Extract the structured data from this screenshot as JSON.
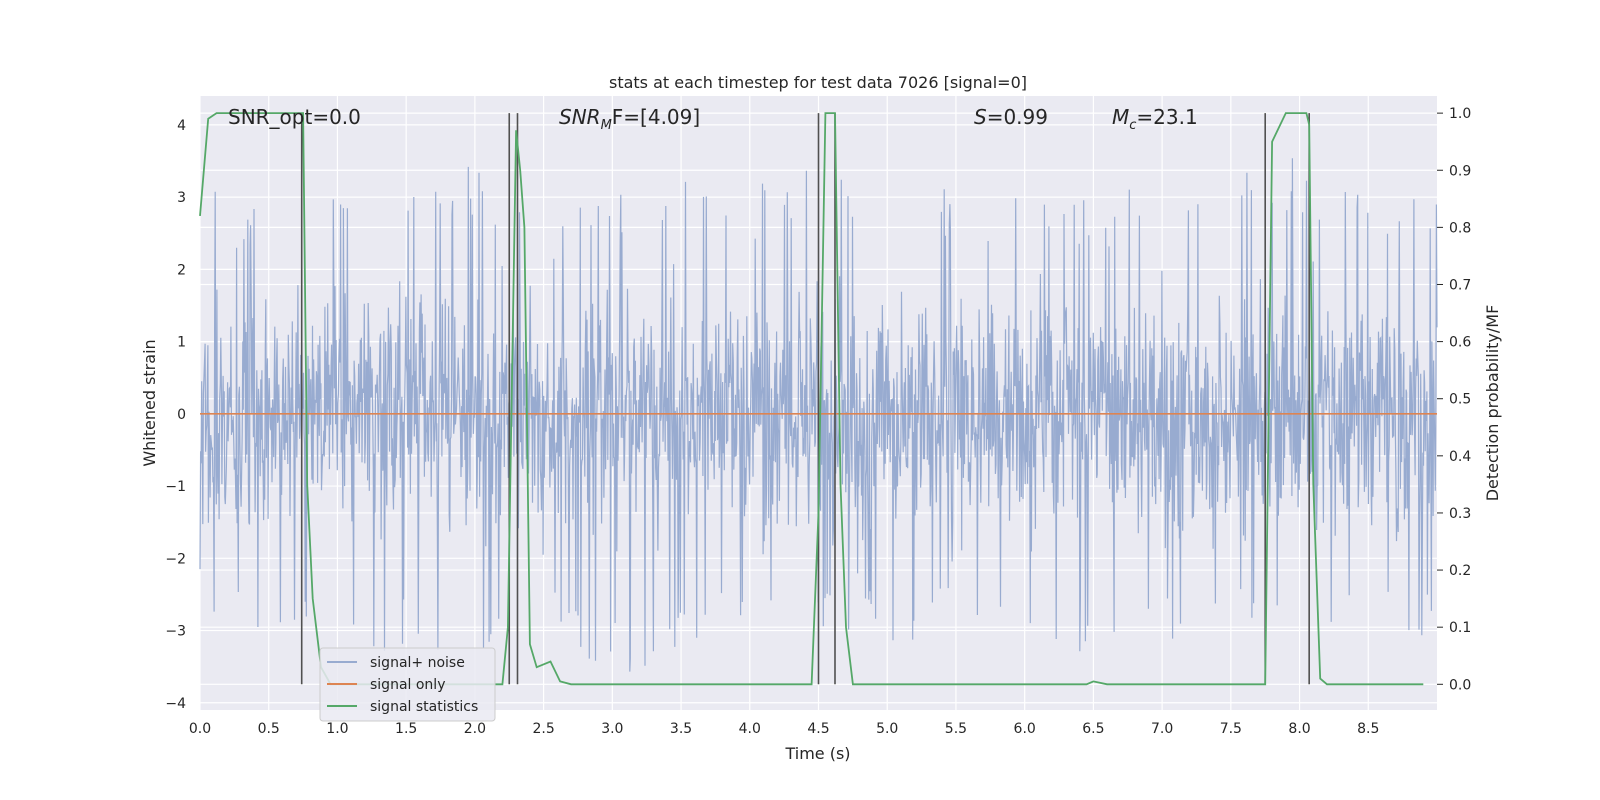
{
  "chart_data": {
    "type": "line",
    "title": "stats at each timestep for test data 7026 [signal=0]",
    "xlabel": "Time (s)",
    "ylabel": "Whitened strain",
    "y2label": "Detection probability/MF",
    "xlim": [
      0.0,
      9.0
    ],
    "ylim": [
      -4.1,
      4.4
    ],
    "y2lim": [
      -0.045,
      1.03
    ],
    "xticks": [
      "0.0",
      "0.5",
      "1.0",
      "1.5",
      "2.0",
      "2.5",
      "3.0",
      "3.5",
      "4.0",
      "4.5",
      "5.0",
      "5.5",
      "6.0",
      "6.5",
      "7.0",
      "7.5",
      "8.0",
      "8.5"
    ],
    "yticks": [
      "4",
      "3",
      "2",
      "1",
      "0",
      "−1",
      "−2",
      "−3",
      "−4"
    ],
    "y2ticks": [
      "1.0",
      "0.9",
      "0.8",
      "0.7",
      "0.6",
      "0.5",
      "0.4",
      "0.3",
      "0.2",
      "0.1",
      "0.0"
    ],
    "grid": true,
    "legend_position": "lower-left",
    "colors": {
      "plot_background": "#eaeaf2",
      "grid": "#ffffff",
      "noise": "#98abd0",
      "signal_only": "#dd8452",
      "statistics": "#55a868",
      "vlines": "#505050"
    },
    "annotations": {
      "snr_opt": "SNR_opt=0.0",
      "snr_mf_label": "SNR",
      "snr_mf_sub": "M",
      "snr_mf_rest": "F=[4.09]",
      "s_label": "S",
      "s_rest": "=0.99",
      "mc_label": "M",
      "mc_sub": "c",
      "mc_rest": "=23.1"
    },
    "series": [
      {
        "name": "signal+ noise",
        "style": "noise",
        "envelope_x": [
          0.0,
          0.5,
          1.0,
          1.5,
          2.0,
          2.5,
          3.0,
          3.5,
          4.0,
          4.5,
          5.0,
          5.5,
          6.0,
          6.5,
          7.0,
          7.5,
          8.0,
          8.5,
          9.0
        ],
        "envelope_max": [
          3.1,
          3.0,
          3.5,
          3.0,
          3.5,
          3.1,
          3.1,
          3.4,
          3.2,
          3.6,
          3.2,
          3.3,
          3.0,
          3.0,
          3.2,
          3.3,
          3.6,
          3.1,
          3.0
        ],
        "envelope_min": [
          -2.7,
          -3.5,
          -3.4,
          -3.3,
          -3.3,
          -3.2,
          -3.7,
          -3.3,
          -3.0,
          -3.2,
          -3.2,
          -3.1,
          -3.1,
          -3.4,
          -3.3,
          -3.1,
          -3.5,
          -3.2,
          -3.1
        ]
      },
      {
        "name": "signal only",
        "x": [
          0.0,
          9.0
        ],
        "y": [
          0.0,
          0.0
        ]
      },
      {
        "name": "signal statistics",
        "axis": "y2",
        "x": [
          0.0,
          0.06,
          0.12,
          0.18,
          0.6,
          0.66,
          0.72,
          0.75,
          0.78,
          0.82,
          0.88,
          0.95,
          1.1,
          1.5,
          2.0,
          2.2,
          2.24,
          2.3,
          2.33,
          2.36,
          2.4,
          2.45,
          2.55,
          2.62,
          2.7,
          2.8,
          3.0,
          3.5,
          4.0,
          4.45,
          4.5,
          4.55,
          4.58,
          4.62,
          4.66,
          4.7,
          4.75,
          5.0,
          6.0,
          6.45,
          6.5,
          6.6,
          7.0,
          7.5,
          7.75,
          7.8,
          7.9,
          8.05,
          8.07,
          8.1,
          8.15,
          8.2,
          8.5,
          8.9
        ],
        "y": [
          0.82,
          0.99,
          1.0,
          1.0,
          1.0,
          1.0,
          1.0,
          1.0,
          0.35,
          0.15,
          0.03,
          0.0,
          0.0,
          0.0,
          0.0,
          0.0,
          0.1,
          0.97,
          0.9,
          0.8,
          0.07,
          0.03,
          0.04,
          0.005,
          0.0,
          0.0,
          0.0,
          0.0,
          0.0,
          0.0,
          0.3,
          1.0,
          1.0,
          1.0,
          0.35,
          0.1,
          0.0,
          0.0,
          0.0,
          0.0,
          0.005,
          0.0,
          0.0,
          0.0,
          0.0,
          0.95,
          1.0,
          1.0,
          0.98,
          0.35,
          0.01,
          0.0,
          0.0,
          0.0
        ]
      }
    ],
    "vertical_lines_x": [
      0.74,
      2.25,
      2.31,
      4.5,
      4.62,
      7.75,
      8.07
    ]
  }
}
